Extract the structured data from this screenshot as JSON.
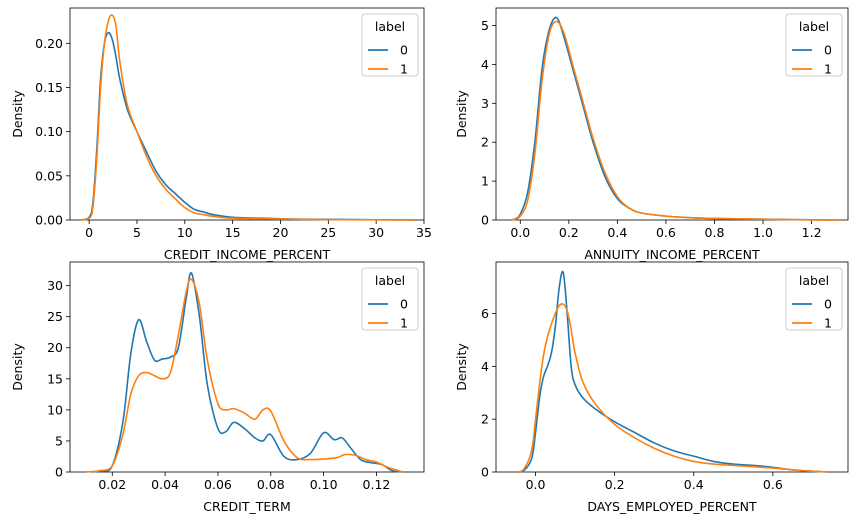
{
  "colors": {
    "series0": "#1f77b4",
    "series1": "#ff7f0e"
  },
  "chart_data": [
    {
      "type": "line",
      "xlabel": "CREDIT_INCOME_PERCENT",
      "ylabel": "Density",
      "xlim": [
        -2.0,
        35.0
      ],
      "ylim": [
        0,
        0.24
      ],
      "xticks": [
        0,
        5,
        10,
        15,
        20,
        25,
        30,
        35
      ],
      "xtick_labels": [
        "0",
        "5",
        "10",
        "15",
        "20",
        "25",
        "30",
        "35"
      ],
      "yticks": [
        0,
        0.05,
        0.1,
        0.15,
        0.2
      ],
      "ytick_labels": [
        "0.00",
        "0.05",
        "0.10",
        "0.15",
        "0.20"
      ],
      "legend": {
        "title": "label",
        "entries": [
          "0",
          "1"
        ],
        "location": "upper right"
      },
      "series": [
        {
          "name": "0",
          "x": [
            -1.0,
            0,
            0.4,
            0.8,
            1.2,
            1.6,
            2.0,
            2.4,
            2.8,
            3.2,
            4.0,
            5.0,
            6.0,
            7.0,
            8.0,
            9.0,
            10.0,
            11.0,
            12.0,
            13.0,
            15.0,
            18.0,
            22.0,
            26.0,
            30.0,
            34.0
          ],
          "y": [
            0,
            0.003,
            0.02,
            0.08,
            0.16,
            0.2,
            0.212,
            0.205,
            0.185,
            0.16,
            0.125,
            0.1,
            0.077,
            0.055,
            0.04,
            0.03,
            0.02,
            0.012,
            0.009,
            0.006,
            0.003,
            0.002,
            0.001,
            0.0006,
            0.0003,
            0.0001
          ]
        },
        {
          "name": "1",
          "x": [
            -1.0,
            0,
            0.4,
            0.8,
            1.2,
            1.6,
            2.0,
            2.4,
            2.8,
            3.2,
            4.0,
            5.0,
            6.0,
            7.0,
            8.0,
            9.0,
            10.0,
            11.0,
            12.0,
            13.0,
            15.0,
            18.0,
            22.0,
            26.0,
            30.0,
            34.0
          ],
          "y": [
            0,
            0.002,
            0.015,
            0.07,
            0.15,
            0.2,
            0.225,
            0.232,
            0.22,
            0.18,
            0.13,
            0.1,
            0.072,
            0.05,
            0.035,
            0.024,
            0.014,
            0.008,
            0.006,
            0.004,
            0.002,
            0.0015,
            0.0008,
            0.0004,
            0.0002,
            0.0001
          ]
        }
      ]
    },
    {
      "type": "line",
      "xlabel": "ANNUITY_INCOME_PERCENT",
      "ylabel": "Density",
      "xlim": [
        -0.1,
        1.35
      ],
      "ylim": [
        0,
        5.45
      ],
      "xticks": [
        0.0,
        0.2,
        0.4,
        0.6,
        0.8,
        1.0,
        1.2
      ],
      "xtick_labels": [
        "0.0",
        "0.2",
        "0.4",
        "0.6",
        "0.8",
        "1.0",
        "1.2"
      ],
      "yticks": [
        0,
        1,
        2,
        3,
        4,
        5
      ],
      "ytick_labels": [
        "0",
        "1",
        "2",
        "3",
        "4",
        "5"
      ],
      "legend": {
        "title": "label",
        "entries": [
          "0",
          "1"
        ],
        "location": "upper right"
      },
      "series": [
        {
          "name": "0",
          "x": [
            -0.04,
            -0.02,
            0.0,
            0.03,
            0.06,
            0.09,
            0.12,
            0.15,
            0.18,
            0.22,
            0.26,
            0.3,
            0.35,
            0.4,
            0.45,
            0.5,
            0.6,
            0.7,
            0.8,
            0.9,
            1.0,
            1.1,
            1.2,
            1.32
          ],
          "y": [
            0,
            0.03,
            0.15,
            0.7,
            2.0,
            3.9,
            4.9,
            5.2,
            4.7,
            3.8,
            2.9,
            2.0,
            1.1,
            0.55,
            0.3,
            0.18,
            0.1,
            0.06,
            0.04,
            0.03,
            0.02,
            0.01,
            0.005,
            0.0
          ]
        },
        {
          "name": "1",
          "x": [
            -0.04,
            -0.02,
            0.0,
            0.03,
            0.06,
            0.09,
            0.12,
            0.15,
            0.18,
            0.22,
            0.26,
            0.3,
            0.35,
            0.4,
            0.45,
            0.5,
            0.6,
            0.7,
            0.8,
            0.9,
            1.0,
            1.1,
            1.2,
            1.32
          ],
          "y": [
            0,
            0.02,
            0.1,
            0.5,
            1.7,
            3.6,
            4.8,
            5.1,
            4.8,
            3.9,
            3.0,
            2.1,
            1.2,
            0.6,
            0.3,
            0.18,
            0.1,
            0.06,
            0.04,
            0.03,
            0.02,
            0.01,
            0.005,
            0.0
          ]
        }
      ]
    },
    {
      "type": "line",
      "xlabel": "CREDIT_TERM",
      "ylabel": "Density",
      "xlim": [
        0.004,
        0.138
      ],
      "ylim": [
        0,
        33.8
      ],
      "xticks": [
        0.02,
        0.04,
        0.06,
        0.08,
        0.1,
        0.12
      ],
      "xtick_labels": [
        "0.02",
        "0.04",
        "0.06",
        "0.08",
        "0.10",
        "0.12"
      ],
      "yticks": [
        0,
        5,
        10,
        15,
        20,
        25,
        30
      ],
      "ytick_labels": [
        "0",
        "5",
        "10",
        "15",
        "20",
        "25",
        "30"
      ],
      "legend": {
        "title": "label",
        "entries": [
          "0",
          "1"
        ],
        "location": "upper right"
      },
      "series": [
        {
          "name": "0",
          "x": [
            0.012,
            0.016,
            0.02,
            0.024,
            0.027,
            0.03,
            0.033,
            0.036,
            0.039,
            0.042,
            0.045,
            0.048,
            0.05,
            0.053,
            0.056,
            0.06,
            0.063,
            0.066,
            0.07,
            0.074,
            0.077,
            0.08,
            0.085,
            0.09,
            0.095,
            0.1,
            0.104,
            0.107,
            0.11,
            0.114,
            0.118,
            0.122,
            0.126,
            0.13
          ],
          "y": [
            0,
            0.2,
            1.0,
            8.0,
            19.0,
            24.5,
            21.0,
            18.0,
            18.2,
            18.5,
            20.0,
            28.0,
            32.0,
            25.0,
            14.0,
            7.0,
            6.5,
            8.0,
            7.0,
            5.5,
            5.0,
            6.0,
            2.5,
            2.0,
            3.0,
            6.3,
            5.2,
            5.5,
            4.0,
            2.0,
            1.5,
            1.2,
            0.2,
            0
          ]
        },
        {
          "name": "1",
          "x": [
            0.01,
            0.015,
            0.02,
            0.024,
            0.027,
            0.03,
            0.033,
            0.036,
            0.039,
            0.042,
            0.045,
            0.048,
            0.05,
            0.053,
            0.056,
            0.06,
            0.063,
            0.066,
            0.07,
            0.074,
            0.077,
            0.08,
            0.085,
            0.09,
            0.095,
            0.1,
            0.105,
            0.108,
            0.112,
            0.116,
            0.12,
            0.124,
            0.13
          ],
          "y": [
            0,
            0.2,
            1.0,
            6.0,
            12.5,
            15.5,
            16.0,
            15.5,
            15.0,
            16.0,
            22.0,
            29.0,
            31.0,
            27.0,
            18.0,
            11.0,
            10.0,
            10.2,
            9.5,
            8.5,
            10.0,
            9.8,
            5.0,
            2.3,
            2.0,
            2.1,
            2.3,
            2.8,
            2.7,
            2.0,
            1.6,
            0.8,
            0
          ]
        }
      ]
    },
    {
      "type": "line",
      "xlabel": "DAYS_EMPLOYED_PERCENT",
      "ylabel": "Density",
      "xlim": [
        -0.1,
        0.79
      ],
      "ylim": [
        0,
        7.95
      ],
      "xticks": [
        0.0,
        0.2,
        0.4,
        0.6
      ],
      "xtick_labels": [
        "0.0",
        "0.2",
        "0.4",
        "0.6"
      ],
      "yticks": [
        0,
        2,
        4,
        6
      ],
      "ytick_labels": [
        "0",
        "2",
        "4",
        "6"
      ],
      "legend": {
        "title": "label",
        "entries": [
          "0",
          "1"
        ],
        "location": "upper right"
      },
      "series": [
        {
          "name": "0",
          "x": [
            -0.05,
            -0.03,
            -0.01,
            0.0,
            0.01,
            0.02,
            0.03,
            0.04,
            0.05,
            0.06,
            0.07,
            0.08,
            0.09,
            0.1,
            0.12,
            0.15,
            0.2,
            0.25,
            0.3,
            0.35,
            0.4,
            0.45,
            0.5,
            0.55,
            0.6,
            0.65,
            0.7,
            0.74
          ],
          "y": [
            0,
            0.05,
            0.5,
            1.5,
            2.8,
            3.6,
            4.0,
            4.5,
            5.5,
            7.0,
            7.55,
            6.0,
            4.0,
            3.3,
            2.8,
            2.4,
            1.9,
            1.5,
            1.1,
            0.8,
            0.6,
            0.4,
            0.3,
            0.25,
            0.18,
            0.08,
            0.03,
            0
          ]
        },
        {
          "name": "1",
          "x": [
            -0.05,
            -0.03,
            -0.01,
            0.0,
            0.01,
            0.02,
            0.03,
            0.04,
            0.05,
            0.06,
            0.07,
            0.08,
            0.09,
            0.1,
            0.12,
            0.15,
            0.2,
            0.25,
            0.3,
            0.35,
            0.4,
            0.45,
            0.5,
            0.55,
            0.6,
            0.65,
            0.7,
            0.74
          ],
          "y": [
            0,
            0.1,
            0.8,
            2.0,
            3.3,
            4.4,
            5.1,
            5.6,
            6.0,
            6.3,
            6.35,
            6.1,
            5.4,
            4.5,
            3.4,
            2.6,
            1.8,
            1.3,
            0.9,
            0.6,
            0.4,
            0.3,
            0.25,
            0.2,
            0.15,
            0.08,
            0.03,
            0
          ]
        }
      ]
    }
  ]
}
